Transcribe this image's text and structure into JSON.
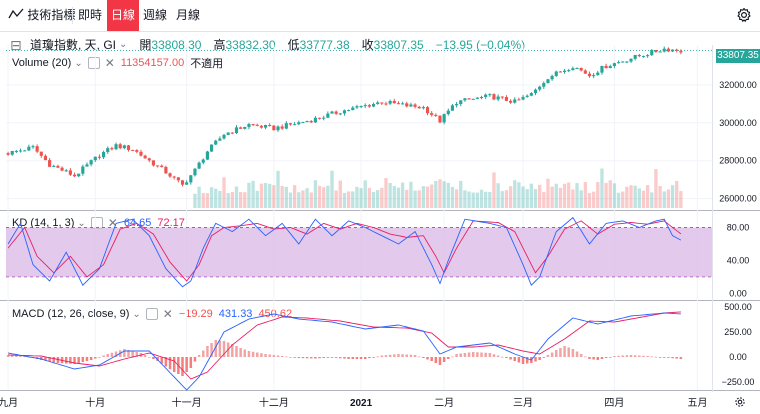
{
  "toolbar": {
    "indicators_label": "技術指標",
    "intervals": [
      {
        "label": "即時",
        "active": false
      },
      {
        "label": "日線",
        "active": true
      },
      {
        "label": "週線",
        "active": false
      },
      {
        "label": "月線",
        "active": false
      }
    ]
  },
  "legend": {
    "symbol": "道瓊指數, 天, GI",
    "open_label": "開",
    "open": "33808.30",
    "high_label": "高",
    "high": "33832.30",
    "low_label": "低",
    "low": "33777.38",
    "close_label": "收",
    "close": "33807.35",
    "change": "−13.95 (−0.04%)"
  },
  "volume": {
    "label": "Volume (20)",
    "value": "11354157.00",
    "extra": "不適用"
  },
  "kd": {
    "label": "KD (14, 1, 3)",
    "k": "64.65",
    "d": "72.17"
  },
  "macd": {
    "label": "MACD (12, 26, close, 9)",
    "v1": "−19.29",
    "v2": "431.33",
    "v3": "450.62"
  },
  "last_price": "33807.35",
  "colors": {
    "up": "#26a69a",
    "down": "#ef5350",
    "active_tab": "#f23645",
    "k_line": "#2962ff",
    "d_line": "#e91e63",
    "kd_band": "#d9b8e6"
  },
  "chart_data": {
    "type": "candlestick",
    "main_axis": {
      "ticks": [
        26000,
        28000,
        30000,
        32000
      ],
      "tick_labels": [
        "26000.00",
        "28000.00",
        "30000.00",
        "32000.00"
      ],
      "ylim": [
        25400,
        34100
      ]
    },
    "kd_axis": {
      "ticks": [
        0,
        40,
        80
      ],
      "tick_labels": [
        "0.00",
        "40.00",
        "80.00"
      ],
      "ylim": [
        -8,
        100
      ],
      "band": [
        20,
        80
      ]
    },
    "macd_axis": {
      "ticks": [
        -250,
        0,
        250,
        500
      ],
      "tick_labels": [
        "−250.00",
        "0.00",
        "250.00",
        "500.00"
      ],
      "ylim": [
        -330,
        560
      ]
    },
    "x_labels": [
      {
        "label": "九月",
        "bold": false,
        "day": 0
      },
      {
        "label": "十月",
        "bold": false,
        "day": 21
      },
      {
        "label": "十一月",
        "bold": false,
        "day": 43
      },
      {
        "label": "十二月",
        "bold": false,
        "day": 64
      },
      {
        "label": "2021",
        "bold": true,
        "day": 85
      },
      {
        "label": "二月",
        "bold": false,
        "day": 105
      },
      {
        "label": "三月",
        "bold": false,
        "day": 124
      },
      {
        "label": "四月",
        "bold": false,
        "day": 146
      },
      {
        "label": "五月",
        "bold": false,
        "day": 166
      }
    ],
    "series": {
      "close_path": [
        [
          0,
          28400
        ],
        [
          6,
          28700
        ],
        [
          10,
          27800
        ],
        [
          16,
          27200
        ],
        [
          22,
          28300
        ],
        [
          26,
          28800
        ],
        [
          30,
          28600
        ],
        [
          38,
          27400
        ],
        [
          42,
          26700
        ],
        [
          45,
          27500
        ],
        [
          48,
          28500
        ],
        [
          52,
          29400
        ],
        [
          58,
          29900
        ],
        [
          64,
          29700
        ],
        [
          68,
          29900
        ],
        [
          74,
          30200
        ],
        [
          80,
          30600
        ],
        [
          86,
          30900
        ],
        [
          90,
          31100
        ],
        [
          96,
          30900
        ],
        [
          100,
          30800
        ],
        [
          104,
          30100
        ],
        [
          108,
          31100
        ],
        [
          116,
          31400
        ],
        [
          120,
          31200
        ],
        [
          122,
          31100
        ],
        [
          126,
          31500
        ],
        [
          130,
          32400
        ],
        [
          136,
          33000
        ],
        [
          140,
          32500
        ],
        [
          144,
          33000
        ],
        [
          150,
          33400
        ],
        [
          158,
          33900
        ],
        [
          162,
          33800
        ]
      ],
      "k_path": [
        [
          0,
          60
        ],
        [
          3,
          85
        ],
        [
          6,
          35
        ],
        [
          10,
          15
        ],
        [
          14,
          50
        ],
        [
          18,
          10
        ],
        [
          22,
          30
        ],
        [
          26,
          85
        ],
        [
          30,
          90
        ],
        [
          34,
          70
        ],
        [
          38,
          30
        ],
        [
          42,
          8
        ],
        [
          44,
          15
        ],
        [
          47,
          55
        ],
        [
          50,
          85
        ],
        [
          54,
          75
        ],
        [
          58,
          90
        ],
        [
          62,
          70
        ],
        [
          66,
          85
        ],
        [
          70,
          60
        ],
        [
          74,
          90
        ],
        [
          78,
          70
        ],
        [
          82,
          88
        ],
        [
          86,
          80
        ],
        [
          90,
          70
        ],
        [
          94,
          60
        ],
        [
          98,
          75
        ],
        [
          102,
          35
        ],
        [
          104,
          12
        ],
        [
          106,
          40
        ],
        [
          110,
          90
        ],
        [
          116,
          85
        ],
        [
          120,
          80
        ],
        [
          124,
          35
        ],
        [
          126,
          10
        ],
        [
          128,
          20
        ],
        [
          132,
          75
        ],
        [
          136,
          92
        ],
        [
          140,
          60
        ],
        [
          144,
          85
        ],
        [
          148,
          88
        ],
        [
          152,
          80
        ],
        [
          156,
          88
        ],
        [
          158,
          90
        ],
        [
          160,
          70
        ],
        [
          162,
          64.65
        ]
      ],
      "d_path": [
        [
          0,
          55
        ],
        [
          4,
          80
        ],
        [
          7,
          45
        ],
        [
          11,
          25
        ],
        [
          15,
          45
        ],
        [
          19,
          20
        ],
        [
          23,
          35
        ],
        [
          27,
          78
        ],
        [
          31,
          85
        ],
        [
          35,
          72
        ],
        [
          39,
          38
        ],
        [
          43,
          15
        ],
        [
          46,
          35
        ],
        [
          49,
          70
        ],
        [
          52,
          80
        ],
        [
          56,
          82
        ],
        [
          60,
          85
        ],
        [
          64,
          78
        ],
        [
          68,
          80
        ],
        [
          72,
          72
        ],
        [
          76,
          85
        ],
        [
          80,
          78
        ],
        [
          84,
          85
        ],
        [
          88,
          80
        ],
        [
          92,
          72
        ],
        [
          96,
          68
        ],
        [
          100,
          70
        ],
        [
          103,
          45
        ],
        [
          105,
          25
        ],
        [
          108,
          55
        ],
        [
          112,
          88
        ],
        [
          118,
          86
        ],
        [
          122,
          75
        ],
        [
          125,
          45
        ],
        [
          127,
          25
        ],
        [
          130,
          45
        ],
        [
          134,
          78
        ],
        [
          138,
          88
        ],
        [
          142,
          72
        ],
        [
          146,
          84
        ],
        [
          150,
          86
        ],
        [
          154,
          84
        ],
        [
          158,
          88
        ],
        [
          160,
          80
        ],
        [
          162,
          72.17
        ]
      ],
      "macd_path": [
        [
          0,
          40
        ],
        [
          8,
          -20
        ],
        [
          16,
          -120
        ],
        [
          22,
          -80
        ],
        [
          28,
          60
        ],
        [
          34,
          60
        ],
        [
          40,
          -200
        ],
        [
          43,
          -330
        ],
        [
          46,
          -200
        ],
        [
          52,
          250
        ],
        [
          58,
          380
        ],
        [
          64,
          430
        ],
        [
          70,
          380
        ],
        [
          78,
          350
        ],
        [
          86,
          280
        ],
        [
          94,
          320
        ],
        [
          100,
          260
        ],
        [
          104,
          30
        ],
        [
          108,
          100
        ],
        [
          116,
          140
        ],
        [
          122,
          30
        ],
        [
          126,
          -30
        ],
        [
          130,
          180
        ],
        [
          136,
          390
        ],
        [
          142,
          330
        ],
        [
          150,
          410
        ],
        [
          158,
          440
        ],
        [
          162,
          431.33
        ]
      ],
      "signal_path": [
        [
          0,
          20
        ],
        [
          8,
          10
        ],
        [
          16,
          -60
        ],
        [
          22,
          -90
        ],
        [
          28,
          -20
        ],
        [
          34,
          40
        ],
        [
          40,
          -40
        ],
        [
          44,
          -220
        ],
        [
          48,
          -150
        ],
        [
          54,
          120
        ],
        [
          60,
          320
        ],
        [
          66,
          400
        ],
        [
          72,
          390
        ],
        [
          80,
          360
        ],
        [
          88,
          300
        ],
        [
          96,
          290
        ],
        [
          102,
          240
        ],
        [
          106,
          100
        ],
        [
          112,
          100
        ],
        [
          118,
          120
        ],
        [
          124,
          60
        ],
        [
          128,
          30
        ],
        [
          134,
          180
        ],
        [
          140,
          360
        ],
        [
          146,
          350
        ],
        [
          152,
          395
        ],
        [
          158,
          440
        ],
        [
          162,
          450.62
        ]
      ],
      "macd_hist": [
        [
          0,
          20
        ],
        [
          4,
          10
        ],
        [
          8,
          -30
        ],
        [
          12,
          -60
        ],
        [
          16,
          -70
        ],
        [
          20,
          -30
        ],
        [
          24,
          30
        ],
        [
          28,
          80
        ],
        [
          32,
          40
        ],
        [
          36,
          -40
        ],
        [
          40,
          -150
        ],
        [
          42,
          -190
        ],
        [
          44,
          -110
        ],
        [
          46,
          20
        ],
        [
          48,
          110
        ],
        [
          50,
          170
        ],
        [
          52,
          160
        ],
        [
          54,
          130
        ],
        [
          56,
          90
        ],
        [
          58,
          60
        ],
        [
          62,
          30
        ],
        [
          66,
          10
        ],
        [
          70,
          -10
        ],
        [
          74,
          -15
        ],
        [
          78,
          -5
        ],
        [
          82,
          -20
        ],
        [
          86,
          -20
        ],
        [
          90,
          15
        ],
        [
          94,
          30
        ],
        [
          98,
          20
        ],
        [
          102,
          -40
        ],
        [
          104,
          -80
        ],
        [
          106,
          -20
        ],
        [
          108,
          30
        ],
        [
          112,
          50
        ],
        [
          116,
          40
        ],
        [
          120,
          -10
        ],
        [
          122,
          -40
        ],
        [
          124,
          -70
        ],
        [
          126,
          -60
        ],
        [
          128,
          -30
        ],
        [
          130,
          20
        ],
        [
          132,
          70
        ],
        [
          134,
          110
        ],
        [
          136,
          80
        ],
        [
          138,
          30
        ],
        [
          140,
          -20
        ],
        [
          142,
          -30
        ],
        [
          146,
          10
        ],
        [
          150,
          20
        ],
        [
          154,
          10
        ],
        [
          158,
          -5
        ],
        [
          162,
          -19.29
        ]
      ],
      "volume_start_day": 45,
      "volume_end_day": 162
    }
  }
}
